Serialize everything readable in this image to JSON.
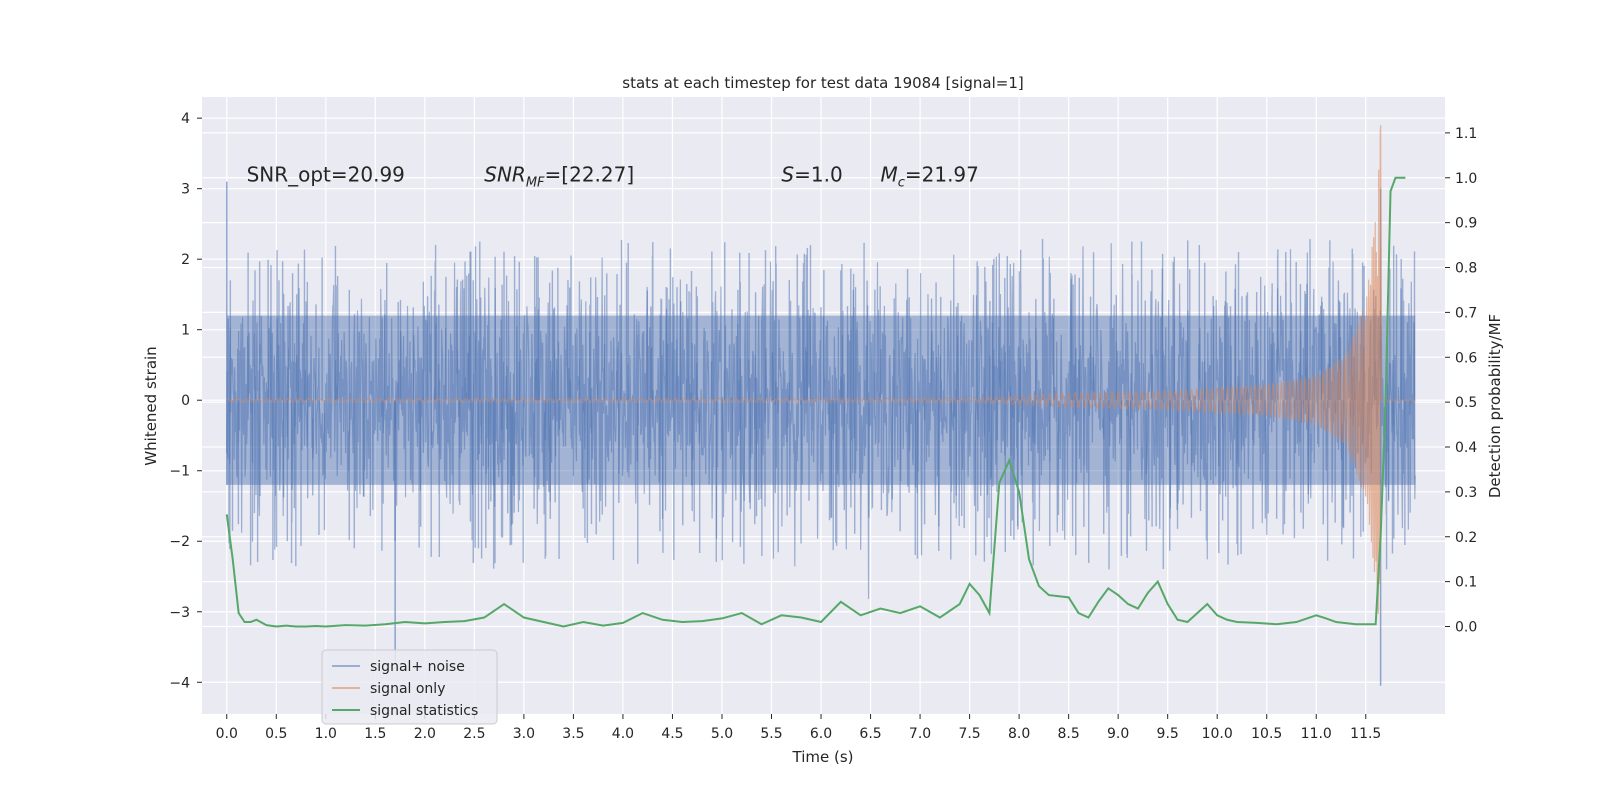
{
  "chart_data": {
    "type": "line",
    "title": "stats at each timestep for test data 19084 [signal=1]",
    "xlabel": "Time (s)",
    "ylabel": "Whitened strain",
    "y2label": "Detection probability/MF",
    "xlim": [
      -0.25,
      12.3
    ],
    "ylim": [
      -4.45,
      4.3
    ],
    "y2lim": [
      -0.195,
      1.18
    ],
    "grid": true,
    "legend_position": "lower-left",
    "x_ticks": [
      "0.0",
      "0.5",
      "1.0",
      "1.5",
      "2.0",
      "2.5",
      "3.0",
      "3.5",
      "4.0",
      "4.5",
      "5.0",
      "5.5",
      "6.0",
      "6.5",
      "7.0",
      "7.5",
      "8.0",
      "8.5",
      "9.0",
      "9.5",
      "10.0",
      "10.5",
      "11.0",
      "11.5"
    ],
    "y_ticks": [
      "4",
      "3",
      "2",
      "1",
      "0",
      "−1",
      "−2",
      "−3",
      "−4"
    ],
    "y2_ticks": [
      "1.1",
      "1.0",
      "0.9",
      "0.8",
      "0.7",
      "0.6",
      "0.5",
      "0.4",
      "0.3",
      "0.2",
      "0.1",
      "0.0"
    ],
    "annotations": [
      {
        "text_main": "SNR_opt=20.99",
        "x": 0.2
      },
      {
        "text_var": "SNR",
        "text_sub": "MF",
        "text_rest": "=[22.27]",
        "x": 2.6
      },
      {
        "text_var": "S",
        "text_rest": "=1.0",
        "x": 5.6
      },
      {
        "text_var": "M",
        "text_sub": "c",
        "text_rest": "=21.97",
        "x": 6.6
      }
    ],
    "annotation_y": 3.1,
    "series": [
      {
        "name": "signal+ noise",
        "color": "#4c72b0",
        "opacity": 0.5,
        "t_range": [
          0,
          12.0
        ],
        "noise_band": [
          -1.2,
          1.2
        ],
        "typical_peak": [
          1.8,
          2.3
        ],
        "extreme_min": -4.05,
        "extreme_max": 3.1
      },
      {
        "name": "signal only",
        "color": "#dd8452",
        "opacity": 0.55,
        "chirp_envelope": [
          [
            0,
            0.02
          ],
          [
            7.5,
            0.03
          ],
          [
            8.5,
            0.1
          ],
          [
            9.5,
            0.13
          ],
          [
            10.5,
            0.22
          ],
          [
            11.0,
            0.35
          ],
          [
            11.3,
            0.65
          ],
          [
            11.5,
            1.4
          ],
          [
            11.6,
            2.6
          ],
          [
            11.65,
            3.9
          ],
          [
            11.66,
            0
          ]
        ],
        "merger_time": 11.65
      },
      {
        "name": "signal statistics",
        "color": "#55a868",
        "axis": "right",
        "x": [
          0.0,
          0.06,
          0.12,
          0.18,
          0.24,
          0.3,
          0.4,
          0.5,
          0.6,
          0.7,
          0.8,
          0.9,
          1.0,
          1.2,
          1.4,
          1.6,
          1.8,
          2.0,
          2.2,
          2.4,
          2.6,
          2.8,
          3.0,
          3.2,
          3.4,
          3.6,
          3.8,
          4.0,
          4.2,
          4.4,
          4.6,
          4.8,
          5.0,
          5.2,
          5.4,
          5.6,
          5.8,
          6.0,
          6.2,
          6.4,
          6.6,
          6.8,
          7.0,
          7.2,
          7.4,
          7.5,
          7.6,
          7.7,
          7.8,
          7.9,
          8.0,
          8.1,
          8.2,
          8.3,
          8.5,
          8.6,
          8.7,
          8.8,
          8.9,
          9.0,
          9.1,
          9.2,
          9.3,
          9.4,
          9.5,
          9.6,
          9.7,
          9.8,
          9.9,
          10.0,
          10.1,
          10.2,
          10.4,
          10.6,
          10.8,
          11.0,
          11.1,
          11.2,
          11.4,
          11.6,
          11.65,
          11.7,
          11.75,
          11.8,
          11.9
        ],
        "y": [
          0.25,
          0.15,
          0.03,
          0.01,
          0.01,
          0.015,
          0.003,
          0.0,
          0.002,
          0.0,
          0.0,
          0.001,
          0.0,
          0.003,
          0.002,
          0.005,
          0.01,
          0.007,
          0.01,
          0.012,
          0.02,
          0.05,
          0.02,
          0.01,
          0.0,
          0.01,
          0.002,
          0.008,
          0.03,
          0.015,
          0.01,
          0.012,
          0.018,
          0.03,
          0.005,
          0.025,
          0.02,
          0.01,
          0.055,
          0.025,
          0.04,
          0.03,
          0.045,
          0.02,
          0.05,
          0.095,
          0.07,
          0.03,
          0.32,
          0.37,
          0.3,
          0.15,
          0.09,
          0.07,
          0.065,
          0.03,
          0.02,
          0.055,
          0.085,
          0.07,
          0.05,
          0.04,
          0.075,
          0.1,
          0.05,
          0.015,
          0.01,
          0.03,
          0.05,
          0.025,
          0.015,
          0.01,
          0.008,
          0.005,
          0.01,
          0.025,
          0.018,
          0.01,
          0.005,
          0.005,
          0.2,
          0.5,
          0.97,
          1.0,
          1.0
        ]
      }
    ]
  }
}
